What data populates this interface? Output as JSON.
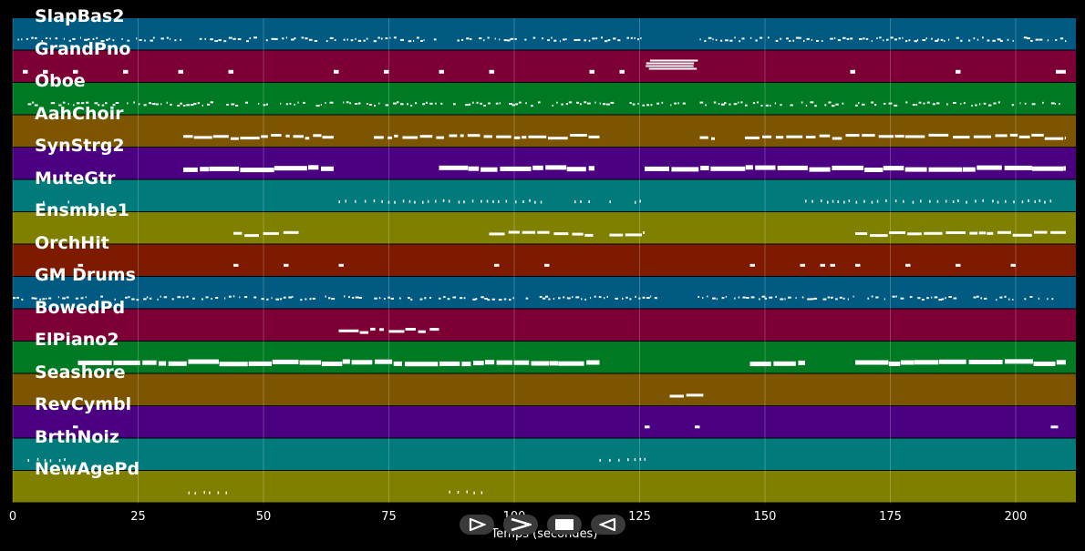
{
  "tracks": [
    {
      "name": "SlapBas2",
      "color": "#005a82"
    },
    {
      "name": "GrandPno",
      "color": "#7d0034"
    },
    {
      "name": "Oboe",
      "color": "#007a22"
    },
    {
      "name": "AahChoir",
      "color": "#7d5500"
    },
    {
      "name": "SynStrg2",
      "color": "#4b0082"
    },
    {
      "name": "MuteGtr",
      "color": "#007a7a"
    },
    {
      "name": "Ensmble1",
      "color": "#808000"
    },
    {
      "name": "OrchHit",
      "color": "#7d1a00"
    },
    {
      "name": "GM Drums",
      "color": "#005a82"
    },
    {
      "name": "BowedPd",
      "color": "#7d0034"
    },
    {
      "name": "ElPiano2",
      "color": "#007a22"
    },
    {
      "name": "Seashore",
      "color": "#7d5500"
    },
    {
      "name": "RevCymbl",
      "color": "#4b0082"
    },
    {
      "name": "BrthNoiz",
      "color": "#007a7a"
    },
    {
      "name": "NewAgePd",
      "color": "#808000"
    }
  ],
  "axis": {
    "title": "Temps (secondes)",
    "xmin": 0,
    "xmax": 212,
    "ticks": [
      0,
      25,
      50,
      75,
      100,
      125,
      150,
      175,
      200
    ],
    "tick_labels": [
      "0",
      "25",
      "50",
      "75",
      "100",
      "125",
      "150",
      "175",
      "200"
    ]
  },
  "controls": [
    {
      "name": "play-button",
      "icon": "play-outline-icon"
    },
    {
      "name": "forward-button",
      "icon": "chevron-right-icon"
    },
    {
      "name": "stop-button",
      "icon": "stop-icon"
    },
    {
      "name": "rewind-button",
      "icon": "rewind-outline-icon"
    }
  ],
  "note_color": "#ffffff",
  "chart_data": {
    "type": "timeline",
    "x_unit": "seconds",
    "xlabel": "Temps (secondes)",
    "xlim": [
      0,
      212
    ],
    "segments": [
      {
        "track": "SlapBas2",
        "spans": [
          [
            1,
            126
          ],
          [
            137,
            210
          ]
        ],
        "style": "dense-dots"
      },
      {
        "track": "GrandPno",
        "spans": [
          [
            2,
            3
          ],
          [
            6,
            7
          ],
          [
            12,
            13
          ],
          [
            22,
            23
          ],
          [
            33,
            34
          ],
          [
            43,
            44
          ],
          [
            64,
            65
          ],
          [
            74,
            75
          ],
          [
            85,
            86
          ],
          [
            95,
            96
          ],
          [
            115,
            116
          ],
          [
            121,
            122
          ],
          [
            126,
            137
          ],
          [
            167,
            168
          ],
          [
            188,
            189
          ],
          [
            208,
            210
          ]
        ],
        "style": "sparse-blocks"
      },
      {
        "track": "Oboe",
        "spans": [
          [
            3,
            120
          ],
          [
            123,
            134
          ],
          [
            137,
            210
          ]
        ],
        "style": "dense-dots"
      },
      {
        "track": "AahChoir",
        "spans": [
          [
            34,
            64
          ],
          [
            72,
            86
          ],
          [
            87,
            117
          ],
          [
            137,
            140
          ],
          [
            146,
            210
          ]
        ],
        "style": "bars"
      },
      {
        "track": "SynStrg2",
        "spans": [
          [
            34,
            64
          ],
          [
            85,
            116
          ],
          [
            126,
            210
          ]
        ],
        "style": "thick-bars"
      },
      {
        "track": "MuteGtr",
        "spans": [
          [
            6,
            7
          ],
          [
            11,
            12
          ],
          [
            65,
            107
          ],
          [
            112,
            115
          ],
          [
            119,
            120
          ],
          [
            124,
            125
          ],
          [
            158,
            207
          ]
        ],
        "style": "sparse-dots"
      },
      {
        "track": "Ensmble1",
        "spans": [
          [
            44,
            57
          ],
          [
            95,
            116
          ],
          [
            119,
            126
          ],
          [
            168,
            210
          ]
        ],
        "style": "bars"
      },
      {
        "track": "OrchHit",
        "spans": [
          [
            13,
            14
          ],
          [
            44,
            45
          ],
          [
            54,
            55
          ],
          [
            65,
            66
          ],
          [
            96,
            97
          ],
          [
            106,
            107
          ],
          [
            147,
            148
          ],
          [
            157,
            158
          ],
          [
            161,
            162
          ],
          [
            163,
            164
          ],
          [
            168,
            169
          ],
          [
            178,
            179
          ],
          [
            188,
            189
          ],
          [
            199,
            200
          ]
        ],
        "style": "ticks"
      },
      {
        "track": "GM Drums",
        "spans": [
          [
            0,
            64
          ],
          [
            66,
            128
          ],
          [
            136,
            208
          ]
        ],
        "style": "dense-dots"
      },
      {
        "track": "BowedPd",
        "spans": [
          [
            65,
            74
          ],
          [
            75,
            85
          ]
        ],
        "style": "bars"
      },
      {
        "track": "ElPiano2",
        "spans": [
          [
            13,
            117
          ],
          [
            147,
            158
          ],
          [
            168,
            210
          ]
        ],
        "style": "thick-bars"
      },
      {
        "track": "Seashore",
        "spans": [
          [
            131,
            138
          ]
        ],
        "style": "bars"
      },
      {
        "track": "RevCymbl",
        "spans": [
          [
            12,
            13
          ],
          [
            126,
            127
          ],
          [
            136,
            137
          ],
          [
            207,
            209
          ]
        ],
        "style": "ticks"
      },
      {
        "track": "BrthNoiz",
        "spans": [
          [
            3,
            11
          ],
          [
            117,
            126
          ]
        ],
        "style": "sparse-dots"
      },
      {
        "track": "NewAgePd",
        "spans": [
          [
            35,
            43
          ],
          [
            87,
            94
          ]
        ],
        "style": "sparse-dots"
      }
    ]
  }
}
